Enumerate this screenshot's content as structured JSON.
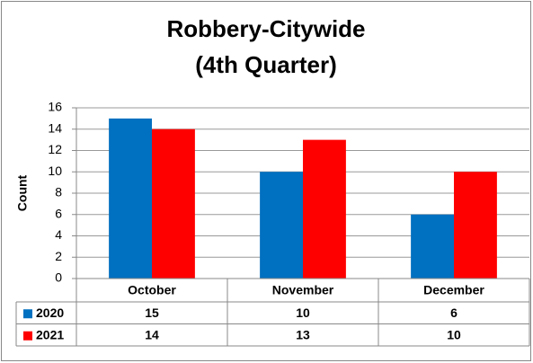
{
  "chart_data": {
    "type": "bar",
    "title": "Robbery-Citywide",
    "subtitle": "(4th Quarter)",
    "y_label": "Count",
    "categories": [
      "October",
      "November",
      "December"
    ],
    "series": [
      {
        "name": "2020",
        "color": "#0070c0",
        "values": [
          15,
          10,
          6
        ]
      },
      {
        "name": "2021",
        "color": "#ff0000",
        "values": [
          14,
          13,
          10
        ]
      }
    ],
    "ylim": [
      0,
      16
    ],
    "yticks": [
      0,
      2,
      4,
      6,
      8,
      10,
      12,
      14,
      16
    ],
    "grid": true,
    "data_table": true
  }
}
